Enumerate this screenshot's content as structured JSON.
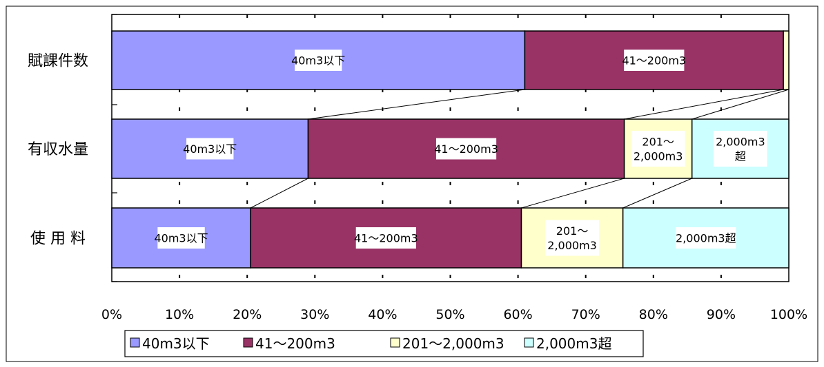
{
  "chart_data": {
    "type": "bar",
    "orientation": "horizontal",
    "stacked": true,
    "percent": true,
    "categories": [
      "賦課件数",
      "有収水量",
      "使 用 料"
    ],
    "series": [
      {
        "name": "40m3以下",
        "color": "#9999ff",
        "values": [
          61,
          29,
          20.5
        ],
        "labels": [
          [
            "40m3以下"
          ],
          [
            "40m3以下"
          ],
          [
            "40m3以下"
          ]
        ]
      },
      {
        "name": "41〜200m3",
        "color": "#993366",
        "values": [
          38.2,
          46.7,
          40
        ],
        "labels": [
          [
            "41〜200m3"
          ],
          [
            "41〜200m3"
          ],
          [
            "41〜200m3"
          ]
        ]
      },
      {
        "name": "201〜2,000m3",
        "color": "#ffffcc",
        "values": [
          0.8,
          10,
          15
        ],
        "labels": [
          [],
          [
            "201〜",
            "2,000m3"
          ],
          [
            "201〜",
            "2,000m3"
          ]
        ]
      },
      {
        "name": "2,000m3超",
        "color": "#ccffff",
        "values": [
          0,
          14.3,
          24.5
        ],
        "labels": [
          [],
          [
            "2,000m3",
            "超"
          ],
          [
            "2,000m3超"
          ]
        ]
      }
    ],
    "xlim": [
      0,
      100
    ],
    "x_ticks": [
      "0%",
      "10%",
      "20%",
      "30%",
      "40%",
      "50%",
      "60%",
      "70%",
      "80%",
      "90%",
      "100%"
    ],
    "grid": "vertical dashed",
    "legend": "bottom"
  }
}
